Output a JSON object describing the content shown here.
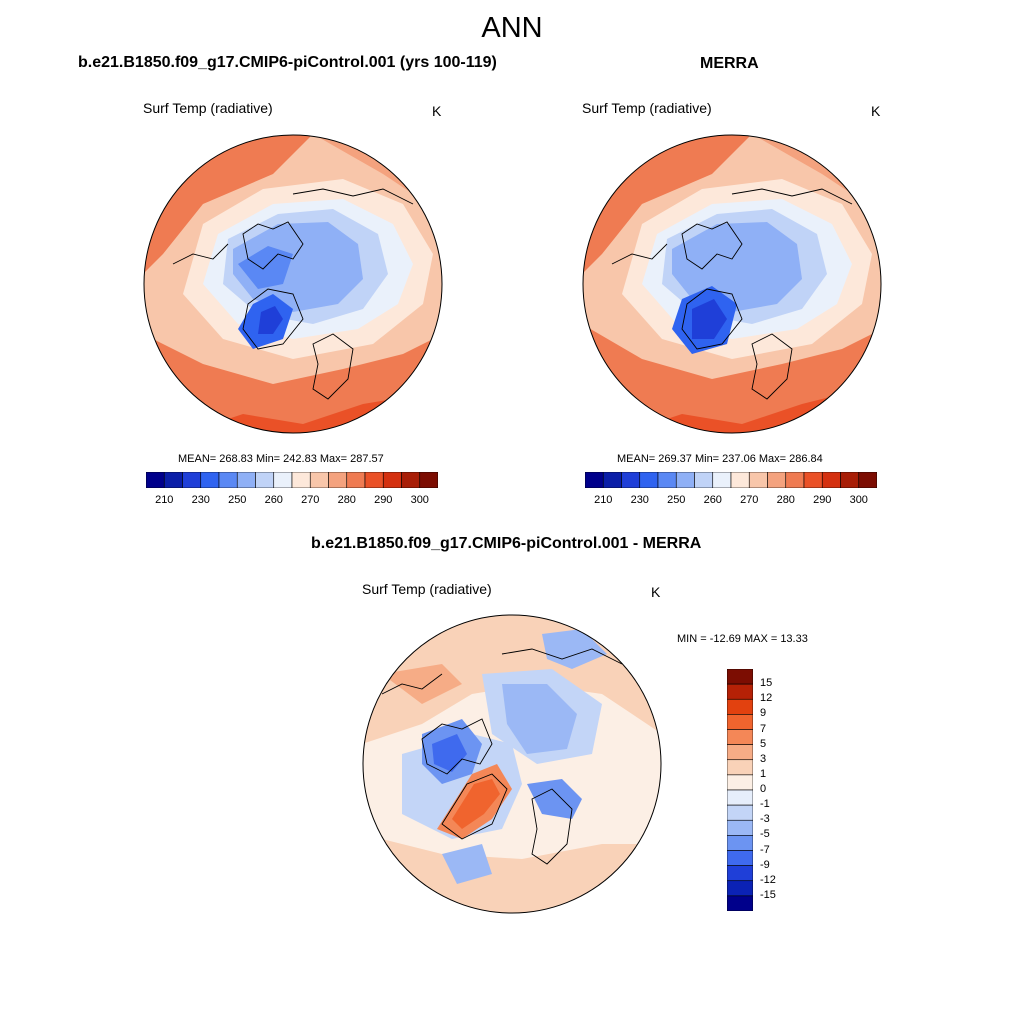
{
  "title": "ANN",
  "panels": [
    {
      "title": "b.e21.B1850.f09_g17.CMIP6-piControl.001 (yrs 100-119)",
      "variable": "Surf Temp (radiative)",
      "units": "K",
      "stats": "MEAN= 268.83  Min= 242.83  Max= 287.57"
    },
    {
      "title": "MERRA",
      "variable": "Surf Temp (radiative)",
      "units": "K",
      "stats": "MEAN= 269.37  Min= 237.06  Max= 286.84"
    }
  ],
  "abs_colorbar": {
    "labels": [
      "210",
      "230",
      "250",
      "260",
      "270",
      "280",
      "290",
      "300"
    ],
    "colors": [
      "#00008b",
      "#0a1ea8",
      "#1f3fd8",
      "#2f63f0",
      "#5a88f4",
      "#8fb0f6",
      "#c0d3f7",
      "#eaf1fb",
      "#fde8da",
      "#f8c6aa",
      "#f4a27e",
      "#ef7b52",
      "#ea5127",
      "#d4300f",
      "#a81e07",
      "#7c0d02"
    ]
  },
  "diff_panel": {
    "title": "b.e21.B1850.f09_g17.CMIP6-piControl.001 - MERRA",
    "variable": "Surf Temp (radiative)",
    "units": "K",
    "stats": "MIN = -12.69 MAX =  13.33"
  },
  "diff_colorbar": {
    "labels": [
      "15",
      "12",
      "9",
      "7",
      "5",
      "3",
      "1",
      "0",
      "-1",
      "-3",
      "-5",
      "-7",
      "-9",
      "-12",
      "-15"
    ],
    "colors": [
      "#7c0d02",
      "#b52106",
      "#e2410f",
      "#f0642e",
      "#f48757",
      "#f6ac86",
      "#f9d2b8",
      "#fcefe5",
      "#e6eefb",
      "#c3d5f7",
      "#9bb8f5",
      "#6c94f2",
      "#3f6aee",
      "#1f3fd8",
      "#0b22b5",
      "#00008b"
    ]
  }
}
